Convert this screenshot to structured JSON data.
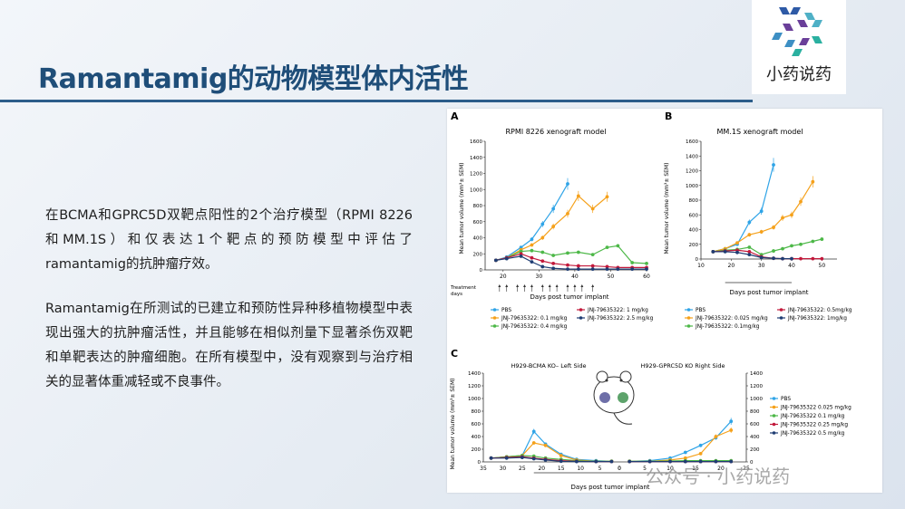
{
  "slide": {
    "title": "Ramantamig的动物模型体内活性",
    "paragraph1": "在BCMA和GPRC5D双靶点阳性的2个治疗模型（RPMI 8226和MM.1S）和仅表达1个靶点的预防模型中评估了ramantamig的抗肿瘤疗效。",
    "paragraph2": "Ramantamig在所测试的已建立和预防性异种移植物模型中表现出强大的抗肿瘤活性，并且能够在相似剂量下显著杀伤双靶和单靶表达的肿瘤细胞。在所有模型中，没有观察到与治疗相关的显著体重减轻或不良事件。",
    "logo_text": "小药说药",
    "watermark": "公众号 · 小药说药"
  },
  "colors": {
    "title": "#1f4e79",
    "pbs": "#2fa4e7",
    "dose_orange": "#f5a11b",
    "dose_green": "#4db848",
    "dose_red": "#c2193b",
    "dose_navy": "#1f3d73"
  },
  "panelA": {
    "label": "A",
    "title": "RPMI 8226 xenograft model",
    "ylabel": "Mean tumor volume (mm³± SEM)",
    "xlabel": "Days post tumor implant",
    "treatment_label_1": "Treatment",
    "treatment_label_2": "days",
    "legend": [
      {
        "name": "PBS",
        "color": "#2fa4e7"
      },
      {
        "name": "JNJ-79635322: 1 mg/kg",
        "color": "#c2193b"
      },
      {
        "name": "JNJ-79635322: 0.1 mg/kg",
        "color": "#f5a11b"
      },
      {
        "name": "JNJ-79635322: 2.5 mg/kg",
        "color": "#1f3d73"
      },
      {
        "name": "JNJ-79635322: 0.4 mg/kg",
        "color": "#4db848"
      }
    ]
  },
  "panelB": {
    "label": "B",
    "title": "MM.1S xenograft model",
    "ylabel": "Mean tumor volume (mm³± SEM)",
    "xlabel": "Days post tumor implant",
    "legend": [
      {
        "name": "PBS",
        "color": "#2fa4e7"
      },
      {
        "name": "JNJ-79635322: 0.5mg/kg",
        "color": "#c2193b"
      },
      {
        "name": "JNJ-79635322: 0.025 mg/kg",
        "color": "#f5a11b"
      },
      {
        "name": "JNJ-79635322: 1mg/kg",
        "color": "#1f3d73"
      },
      {
        "name": "JNJ-79635322: 0.1mg/kg",
        "color": "#4db848"
      }
    ]
  },
  "panelC": {
    "label": "C",
    "title_left": "H929-BCMA KO– Left Side",
    "title_right": "H929-GPRC5D KO Right Side",
    "ylabel": "Mean tumor volume (mm³± SEM)",
    "xlabel": "Days post tumor implant",
    "legend": [
      {
        "name": "PBS",
        "color": "#2fa4e7"
      },
      {
        "name": "JNJ-79635322 0.025 mg/kg",
        "color": "#f5a11b"
      },
      {
        "name": "JNJ-79635322 0.1 mg/kg",
        "color": "#4db848"
      },
      {
        "name": "JNJ-79635322 0.25 mg/kg",
        "color": "#c2193b"
      },
      {
        "name": "JNJ-79635322 0.5 mg/kg",
        "color": "#1f3d73"
      }
    ]
  },
  "chart_data": [
    {
      "type": "line",
      "title": "RPMI 8226 xenograft model",
      "xlabel": "Days post tumor implant",
      "ylabel": "Mean tumor volume (mm³± SEM)",
      "xlim": [
        15,
        60
      ],
      "ylim": [
        0,
        1600
      ],
      "xticks": [
        20,
        30,
        40,
        50,
        60
      ],
      "yticks": [
        0,
        200,
        400,
        600,
        800,
        1000,
        1200,
        1400,
        1600
      ],
      "treatment_days": [
        19,
        21,
        24,
        26,
        28,
        31,
        33,
        35,
        38,
        40,
        42,
        45
      ],
      "series": [
        {
          "name": "PBS",
          "color": "#2fa4e7",
          "x": [
            18,
            21,
            25,
            28,
            31,
            34,
            38
          ],
          "y": [
            120,
            160,
            280,
            380,
            570,
            760,
            1070
          ]
        },
        {
          "name": "JNJ-79635322: 0.1 mg/kg",
          "color": "#f5a11b",
          "x": [
            18,
            21,
            25,
            28,
            31,
            34,
            38,
            41,
            45,
            49
          ],
          "y": [
            120,
            150,
            250,
            310,
            400,
            540,
            700,
            920,
            760,
            910
          ]
        },
        {
          "name": "JNJ-79635322: 0.4 mg/kg",
          "color": "#4db848",
          "x": [
            18,
            21,
            25,
            28,
            31,
            34,
            38,
            41,
            45,
            49,
            52,
            56,
            60
          ],
          "y": [
            120,
            150,
            230,
            240,
            220,
            180,
            210,
            220,
            190,
            280,
            300,
            90,
            80
          ]
        },
        {
          "name": "JNJ-79635322: 1 mg/kg",
          "color": "#c2193b",
          "x": [
            18,
            21,
            25,
            28,
            31,
            34,
            38,
            41,
            45,
            49,
            52,
            56,
            60
          ],
          "y": [
            120,
            150,
            200,
            150,
            110,
            80,
            60,
            50,
            50,
            40,
            30,
            30,
            30
          ]
        },
        {
          "name": "JNJ-79635322: 2.5 mg/kg",
          "color": "#1f3d73",
          "x": [
            18,
            21,
            25,
            28,
            31,
            34,
            38,
            41,
            45,
            49,
            52,
            56,
            60
          ],
          "y": [
            120,
            140,
            170,
            100,
            40,
            20,
            10,
            10,
            10,
            10,
            10,
            10,
            10
          ]
        }
      ]
    },
    {
      "type": "line",
      "title": "MM.1S xenograft model",
      "xlabel": "Days post tumor implant",
      "ylabel": "Mean tumor volume (mm³± SEM)",
      "xlim": [
        10,
        55
      ],
      "ylim": [
        0,
        1600
      ],
      "xticks": [
        10,
        20,
        30,
        40,
        50
      ],
      "yticks": [
        0,
        200,
        400,
        600,
        800,
        1000,
        1200,
        1400,
        1600
      ],
      "series": [
        {
          "name": "PBS",
          "color": "#2fa4e7",
          "x": [
            14,
            18,
            22,
            26,
            30,
            34
          ],
          "y": [
            100,
            140,
            200,
            500,
            650,
            1280
          ]
        },
        {
          "name": "JNJ-79635322: 0.025 mg/kg",
          "color": "#f5a11b",
          "x": [
            14,
            18,
            22,
            26,
            30,
            34,
            37,
            40,
            43,
            47
          ],
          "y": [
            100,
            140,
            220,
            330,
            370,
            430,
            560,
            600,
            780,
            1050
          ]
        },
        {
          "name": "JNJ-79635322: 0.1mg/kg",
          "color": "#4db848",
          "x": [
            14,
            18,
            22,
            26,
            30,
            34,
            37,
            40,
            43,
            47,
            50
          ],
          "y": [
            100,
            120,
            130,
            160,
            60,
            110,
            140,
            180,
            200,
            240,
            270
          ]
        },
        {
          "name": "JNJ-79635322: 0.5mg/kg",
          "color": "#c2193b",
          "x": [
            14,
            18,
            22,
            26,
            30,
            34,
            37,
            40,
            43,
            47,
            50
          ],
          "y": [
            100,
            110,
            120,
            100,
            30,
            10,
            5,
            5,
            5,
            5,
            5
          ]
        },
        {
          "name": "JNJ-79635322: 1mg/kg",
          "color": "#1f3d73",
          "x": [
            14,
            18,
            22,
            26,
            30,
            34,
            37,
            40
          ],
          "y": [
            100,
            100,
            90,
            60,
            20,
            10,
            5,
            5
          ]
        }
      ]
    },
    {
      "type": "line",
      "title": "H929-BCMA KO– Left Side / H929-GPRC5D KO Right Side",
      "xlabel": "Days post tumor implant",
      "ylabel": "Mean tumor volume (mm³± SEM)",
      "ylim": [
        0,
        1400
      ],
      "xticks_left": [
        35,
        30,
        25,
        20,
        15,
        10,
        5,
        0
      ],
      "xticks_right": [
        0,
        5,
        10,
        15,
        20,
        25
      ],
      "yticks": [
        0,
        200,
        400,
        600,
        800,
        1000,
        1200,
        1400
      ],
      "series": [
        {
          "name": "PBS",
          "color": "#2fa4e7",
          "x_left": [
            33,
            29,
            25,
            22,
            19,
            15,
            11,
            6,
            2
          ],
          "y_left": [
            60,
            80,
            100,
            480,
            280,
            120,
            40,
            20,
            10
          ],
          "x_right": [
            2,
            6,
            10,
            13,
            16,
            19,
            22
          ],
          "y_right": [
            10,
            20,
            60,
            150,
            260,
            380,
            640
          ]
        },
        {
          "name": "JNJ-79635322 0.025 mg/kg",
          "color": "#f5a11b",
          "x_left": [
            33,
            29,
            25,
            22,
            19,
            15,
            11,
            6,
            2
          ],
          "y_left": [
            60,
            80,
            100,
            300,
            260,
            100,
            30,
            10,
            10
          ],
          "x_right": [
            2,
            6,
            10,
            13,
            16,
            19,
            22
          ],
          "y_right": [
            10,
            10,
            30,
            60,
            130,
            400,
            500
          ]
        },
        {
          "name": "JNJ-79635322 0.1 mg/kg",
          "color": "#4db848",
          "x_left": [
            33,
            29,
            25,
            22,
            19,
            15,
            11,
            6,
            2
          ],
          "y_left": [
            60,
            80,
            100,
            90,
            60,
            40,
            20,
            10,
            10
          ],
          "x_right": [
            2,
            6,
            10,
            13,
            16,
            19,
            22
          ],
          "y_right": [
            10,
            10,
            15,
            20,
            20,
            20,
            20
          ]
        },
        {
          "name": "JNJ-79635322 0.25 mg/kg",
          "color": "#c2193b",
          "x_left": [
            33,
            29,
            25,
            22,
            19,
            15,
            11,
            6,
            2
          ],
          "y_left": [
            60,
            70,
            80,
            60,
            40,
            20,
            10,
            5,
            5
          ],
          "x_right": [
            2,
            6,
            10,
            13,
            16,
            19,
            22
          ],
          "y_right": [
            5,
            5,
            5,
            5,
            5,
            5,
            5
          ]
        },
        {
          "name": "JNJ-79635322 0.5 mg/kg",
          "color": "#1f3d73",
          "x_left": [
            33,
            29,
            25,
            22,
            19,
            15,
            11,
            6,
            2
          ],
          "y_left": [
            60,
            60,
            70,
            50,
            30,
            10,
            5,
            5,
            5
          ],
          "x_right": [
            2,
            6,
            10,
            13,
            16,
            19,
            22
          ],
          "y_right": [
            5,
            5,
            5,
            5,
            5,
            5,
            5
          ]
        }
      ]
    }
  ]
}
